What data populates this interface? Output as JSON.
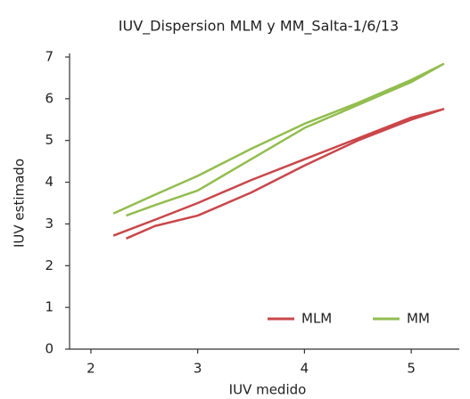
{
  "chart_data": {
    "type": "line",
    "title": "IUV_Dispersion MLM y MM_Salta-1/6/13",
    "xlabel": "IUV medido",
    "ylabel": "IUV estimado",
    "xlim": [
      1.8,
      5.45
    ],
    "xticks": [
      2,
      3,
      4,
      5
    ],
    "ylim": [
      0,
      7
    ],
    "yticks": [
      0,
      1,
      2,
      3,
      4,
      5,
      6,
      7
    ],
    "grid": false,
    "legend": "lower right",
    "series": [
      {
        "name": "MLM",
        "color": "#c9474a",
        "x": [
          2.33,
          2.6,
          3.0,
          3.5,
          4.0,
          4.5,
          5.0,
          5.3,
          5.0,
          4.5,
          4.0,
          3.5,
          3.0,
          2.6,
          2.21
        ],
        "values": [
          2.65,
          2.95,
          3.2,
          3.75,
          4.4,
          5.0,
          5.5,
          5.75,
          5.55,
          5.05,
          4.55,
          4.05,
          3.5,
          3.1,
          2.72
        ]
      },
      {
        "name": "MM",
        "color": "#92bd4f",
        "x": [
          2.33,
          2.6,
          3.0,
          3.5,
          4.0,
          4.5,
          5.0,
          5.3,
          5.0,
          4.5,
          4.0,
          3.5,
          3.0,
          2.6,
          2.21
        ],
        "values": [
          3.2,
          3.45,
          3.8,
          4.55,
          5.3,
          5.85,
          6.4,
          6.83,
          6.45,
          5.9,
          5.4,
          4.8,
          4.15,
          3.7,
          3.25
        ]
      }
    ]
  }
}
